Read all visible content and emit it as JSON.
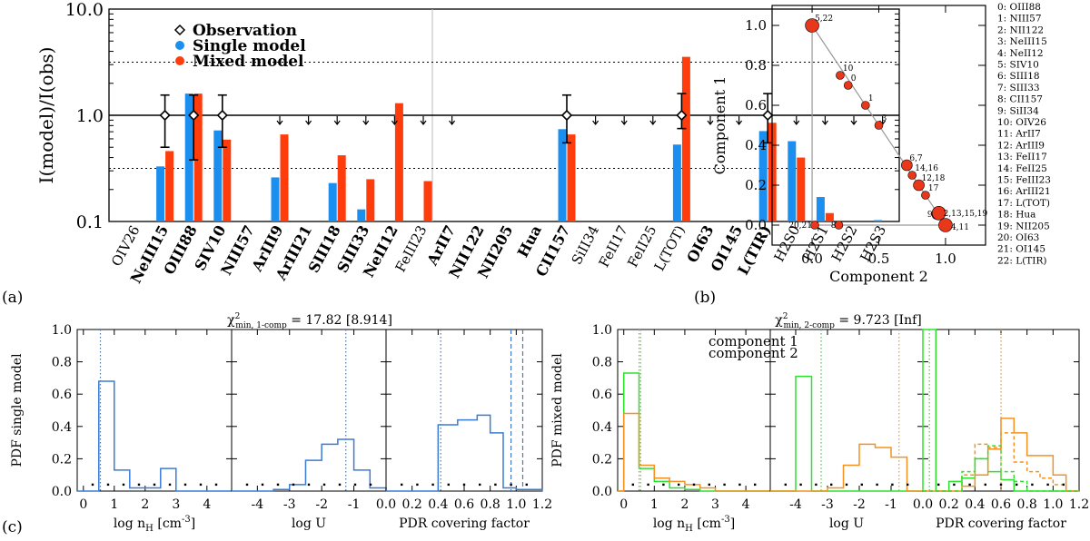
{
  "colors": {
    "single": "#1b8ff0",
    "mixed": "#ff3d0c",
    "pdf_single": "#3a7bd5",
    "comp1": "#f39222",
    "comp2": "#2ee02e",
    "point": "#e8371a",
    "obs": "#000000"
  },
  "panel_labels": {
    "a": "(a)",
    "b": "(b)",
    "c": "(c)"
  },
  "chart_data": [
    {
      "id": "a",
      "type": "bar",
      "ylabel": "I(model)/I(obs)",
      "yscale": "log",
      "ylim": [
        0.1,
        10.0
      ],
      "yticks": [
        "0.1",
        "1.0",
        "10.0"
      ],
      "legend": [
        {
          "name": "Observation",
          "marker": "diamond"
        },
        {
          "name": "Single model",
          "marker": "dot-single"
        },
        {
          "name": "Mixed model",
          "marker": "dot-mixed"
        }
      ],
      "reference_lines": [
        1.0,
        3.16,
        0.316
      ],
      "bold_lines": [
        "NeIII15",
        "OIII88",
        "SIV10",
        "NIII57",
        "ArIII9",
        "ArIII21",
        "SIII18",
        "SIII33",
        "NeII12",
        "ArII7",
        "NII122",
        "NII205",
        "Hua",
        "CII157",
        "OI63",
        "OI145",
        "L(TIR)"
      ],
      "categories": [
        "OIV26",
        "NeIII15",
        "OIII88",
        "SIV10",
        "NIII57",
        "ArIII9",
        "ArIII21",
        "SIII18",
        "SIII33",
        "NeII12",
        "FeIII23",
        "ArII7",
        "NII122",
        "NII205",
        "Hua",
        "CII157",
        "SiII34",
        "FeII17",
        "FeII25",
        "L(TOT)",
        "OI63",
        "OI145",
        "L(TIR)",
        "H2S0",
        "H2S1",
        "H2S2",
        "H2S3"
      ],
      "series": [
        {
          "name": "Single model",
          "values": [
            null,
            0.33,
            1.6,
            0.72,
            null,
            0.26,
            null,
            0.23,
            0.13,
            null,
            null,
            null,
            null,
            null,
            null,
            0.74,
            null,
            null,
            null,
            0.53,
            null,
            null,
            0.71,
            0.57,
            0.17,
            null,
            0.103
          ]
        },
        {
          "name": "Mixed model",
          "values": [
            null,
            0.46,
            1.6,
            0.59,
            null,
            0.66,
            null,
            0.42,
            0.25,
            1.3,
            0.24,
            null,
            null,
            null,
            null,
            0.66,
            null,
            null,
            null,
            3.55,
            null,
            null,
            0.85,
            0.4,
            0.12,
            null,
            null
          ]
        }
      ],
      "observations": [
        {
          "line": "NeIII15",
          "value": 1.0,
          "low": 0.5,
          "high": 1.55
        },
        {
          "line": "OIII88",
          "value": 1.0,
          "low": 0.38,
          "high": 1.55
        },
        {
          "line": "SIV10",
          "value": 1.0,
          "low": 0.5,
          "high": 1.55
        },
        {
          "line": "CII157",
          "value": 1.0,
          "low": 0.55,
          "high": 1.55
        },
        {
          "line": "L(TOT)",
          "value": 1.0,
          "low": 0.75,
          "high": 1.6
        },
        {
          "line": "L(TIR)",
          "value": 1.0,
          "low": 0.55,
          "high": 1.6
        }
      ],
      "upper_limits": [
        "ArIII9",
        "ArIII21",
        "SIII18",
        "SIII33",
        "NeII12",
        "FeIII23",
        "ArII7",
        "SiII34",
        "FeII17",
        "FeII25",
        "OI63",
        "OI145",
        "H2S0",
        "H2S1",
        "H2S2",
        "H2S3"
      ]
    },
    {
      "id": "b",
      "type": "scatter",
      "xlabel": "Component 2",
      "ylabel": "Component 1",
      "xlim": [
        -0.3,
        1.3
      ],
      "ylim": [
        -0.1,
        1.1
      ],
      "xticks": [
        "0.0",
        "0.5",
        "1.0"
      ],
      "yticks": [
        "0.0",
        "0.2",
        "0.4",
        "0.6",
        "0.8",
        "1.0"
      ],
      "points": [
        {
          "label": "5,22",
          "x": 0.0,
          "y": 1.0,
          "size": "large"
        },
        {
          "label": "10",
          "x": 0.21,
          "y": 0.75,
          "size": "small"
        },
        {
          "label": "0",
          "x": 0.27,
          "y": 0.7,
          "size": "small"
        },
        {
          "label": "1",
          "x": 0.4,
          "y": 0.6,
          "size": "small"
        },
        {
          "label": "3",
          "x": 0.5,
          "y": 0.5,
          "size": "small"
        },
        {
          "label": "6,7",
          "x": 0.71,
          "y": 0.3,
          "size": "medium"
        },
        {
          "label": "14,16",
          "x": 0.75,
          "y": 0.25,
          "size": "small"
        },
        {
          "label": "12,18",
          "x": 0.8,
          "y": 0.2,
          "size": "medium"
        },
        {
          "label": "17",
          "x": 0.85,
          "y": 0.15,
          "size": "small"
        },
        {
          "label": "9",
          "x": 0.93,
          "y": 0.05,
          "size": "small"
        },
        {
          "label": "2,13,15,19",
          "x": 0.95,
          "y": 0.06,
          "size": "large"
        },
        {
          "label": "4,11",
          "x": 1.0,
          "y": 0.0,
          "size": "large"
        },
        {
          "label": "8",
          "x": 0.2,
          "y": 0.0,
          "size": "small"
        },
        {
          "label": "20,21",
          "x": 0.02,
          "y": 0.0,
          "size": "small"
        }
      ],
      "legend_items": [
        "0: OIII88",
        "1: NIII57",
        "2: NII122",
        "3: NeIII15",
        "4: NeII12",
        "5: SIV10",
        "6: SIII18",
        "7: SIII33",
        "8: CII157",
        "9: SiII34",
        "10: OIV26",
        "11:  ArII7",
        "12: ArIII9",
        "13: FeII17",
        "14: FeII25",
        "15: FeIII23",
        "16: ArIII21",
        "17: L(TOT)",
        "18:  Hua",
        "19: NII205",
        "20: OI63",
        "21: OI145",
        "22: L(TIR)"
      ]
    },
    {
      "id": "c-single",
      "type": "histogram",
      "title_prefix": "χ",
      "title_sup": "2",
      "title_sub": "min, 1-comp",
      "title_value": " = 17.82 [8.914]",
      "ylabel": "PDF single model",
      "ylim": [
        0,
        1.0
      ],
      "yticks": [
        "0.0",
        "0.2",
        "0.4",
        "0.6",
        "0.8",
        "1.0"
      ],
      "subplots": [
        {
          "xlabel": "log n",
          "xlabel_sub": "H",
          "xlabel_unit": " [cm",
          "xlabel_sup": "-3",
          "xlabel_end": "]",
          "xlim": [
            -0.2,
            4.8
          ],
          "xticks": [
            "0",
            "1",
            "2",
            "3",
            "4"
          ],
          "bins": [
            [
              -0.2,
              0.0
            ],
            [
              0.0,
              0.5
            ],
            [
              0.5,
              1.0
            ],
            [
              1.0,
              1.5
            ],
            [
              1.5,
              2.0
            ],
            [
              2.0,
              2.5
            ],
            [
              2.5,
              3.0
            ],
            [
              3.0,
              4.8
            ]
          ],
          "values": [
            0.0,
            0.0,
            0.68,
            0.13,
            0.02,
            0.02,
            0.14,
            0.0
          ],
          "best": 0.55
        },
        {
          "xlabel": "log U",
          "xlim": [
            -4.8,
            0.0
          ],
          "xticks": [
            "-4",
            "-3",
            "-2",
            "-1"
          ],
          "bins": [
            [
              -4.8,
              -3.5
            ],
            [
              -3.5,
              -3.0
            ],
            [
              -3.0,
              -2.5
            ],
            [
              -2.5,
              -2.0
            ],
            [
              -2.0,
              -1.5
            ],
            [
              -1.5,
              -1.0
            ],
            [
              -1.0,
              -0.5
            ],
            [
              -0.5,
              0.0
            ]
          ],
          "values": [
            0.0,
            0.01,
            0.04,
            0.19,
            0.29,
            0.32,
            0.13,
            0.02
          ],
          "best": -1.25
        },
        {
          "xlabel": "PDR covering factor",
          "xlim": [
            0.0,
            1.2
          ],
          "xticks": [
            "0.0",
            "0.2",
            "0.4",
            "0.6",
            "0.8",
            "1.0",
            "1.2"
          ],
          "bins": [
            [
              0.0,
              0.3
            ],
            [
              0.3,
              0.4
            ],
            [
              0.4,
              0.55
            ],
            [
              0.55,
              0.7
            ],
            [
              0.7,
              0.8
            ],
            [
              0.8,
              0.9
            ],
            [
              0.9,
              1.0
            ],
            [
              1.0,
              1.2
            ]
          ],
          "values": [
            0.0,
            0.0,
            0.41,
            0.44,
            0.47,
            0.36,
            0.02,
            0.01
          ],
          "best": 0.42,
          "dashed": [
            0.96,
            1.05
          ]
        }
      ]
    },
    {
      "id": "c-mixed",
      "type": "histogram",
      "title_prefix": "χ",
      "title_sup": "2",
      "title_sub": "min, 2-comp",
      "title_value": " = 9.723 [Inf]",
      "ylabel": "PDF mixed model",
      "legend": [
        "component 1",
        "component 2"
      ],
      "ylim": [
        0,
        1.0
      ],
      "yticks": [
        "0.0",
        "0.2",
        "0.4",
        "0.6",
        "0.8",
        "1.0"
      ],
      "subplots": [
        {
          "xlabel": "log n",
          "xlabel_sub": "H",
          "xlabel_unit": " [cm",
          "xlabel_sup": "-3",
          "xlabel_end": "]",
          "xlim": [
            -0.2,
            4.8
          ],
          "xticks": [
            "0",
            "1",
            "2",
            "3",
            "4"
          ],
          "bins": [
            [
              -0.2,
              0.0
            ],
            [
              0.0,
              0.5
            ],
            [
              0.5,
              1.0
            ],
            [
              1.0,
              1.5
            ],
            [
              1.5,
              2.0
            ],
            [
              2.0,
              2.5
            ],
            [
              2.5,
              3.0
            ],
            [
              3.0,
              4.8
            ]
          ],
          "comp1": [
            0.0,
            0.48,
            0.16,
            0.08,
            0.06,
            0.04,
            0.02,
            0.0
          ],
          "comp2": [
            0.0,
            0.73,
            0.14,
            0.06,
            0.02,
            0.01,
            0.0,
            0.0
          ],
          "best1": 0.5,
          "best2": 0.55
        },
        {
          "xlabel": "log U",
          "xlim": [
            -4.8,
            0.0
          ],
          "xticks": [
            "-4",
            "-3",
            "-2",
            "-1"
          ],
          "bins": [
            [
              -4.8,
              -4.0
            ],
            [
              -4.0,
              -3.5
            ],
            [
              -3.5,
              -3.0
            ],
            [
              -3.0,
              -2.5
            ],
            [
              -2.5,
              -2.0
            ],
            [
              -2.0,
              -1.5
            ],
            [
              -1.5,
              -1.0
            ],
            [
              -1.0,
              -0.5
            ],
            [
              -0.5,
              0.0
            ]
          ],
          "comp1": [
            0.0,
            0.0,
            0.0,
            0.02,
            0.16,
            0.29,
            0.27,
            0.21,
            0.0
          ],
          "comp2": [
            0.0,
            0.71,
            0.0,
            0.0,
            0.0,
            0.0,
            0.0,
            0.0,
            0.0
          ],
          "best1": -0.75,
          "best2": -3.2
        },
        {
          "xlabel": "PDR covering factor",
          "xlim": [
            0.0,
            1.2
          ],
          "xticks": [
            "0.0",
            "0.2",
            "0.4",
            "0.6",
            "0.8",
            "1.0",
            "1.2"
          ],
          "bins": [
            [
              0.0,
              0.1
            ],
            [
              0.1,
              0.2
            ],
            [
              0.2,
              0.3
            ],
            [
              0.3,
              0.4
            ],
            [
              0.4,
              0.5
            ],
            [
              0.5,
              0.6
            ],
            [
              0.6,
              0.7
            ],
            [
              0.7,
              0.8
            ],
            [
              0.8,
              0.9
            ],
            [
              0.9,
              1.0
            ],
            [
              1.0,
              1.1
            ],
            [
              1.1,
              1.2
            ]
          ],
          "comp1": [
            0.0,
            0.0,
            0.0,
            0.03,
            0.1,
            0.26,
            0.45,
            0.36,
            0.22,
            0.22,
            0.1,
            0.0
          ],
          "comp2": [
            1.0,
            0.0,
            0.06,
            0.08,
            0.2,
            0.12,
            0.07,
            0.0,
            0.0,
            0.0,
            0.0,
            0.0
          ],
          "comp1_dashed": [
            0.0,
            0.0,
            0.0,
            0.1,
            0.29,
            0.27,
            0.36,
            0.18,
            0.12,
            0.08,
            0.04,
            0.0
          ],
          "comp2_dashed": [
            0.0,
            0.0,
            0.0,
            0.12,
            0.2,
            0.28,
            0.12,
            0.06,
            0.0,
            0.0,
            0.0,
            0.0
          ],
          "best1": 0.6,
          "best2": 0.05
        }
      ]
    }
  ]
}
